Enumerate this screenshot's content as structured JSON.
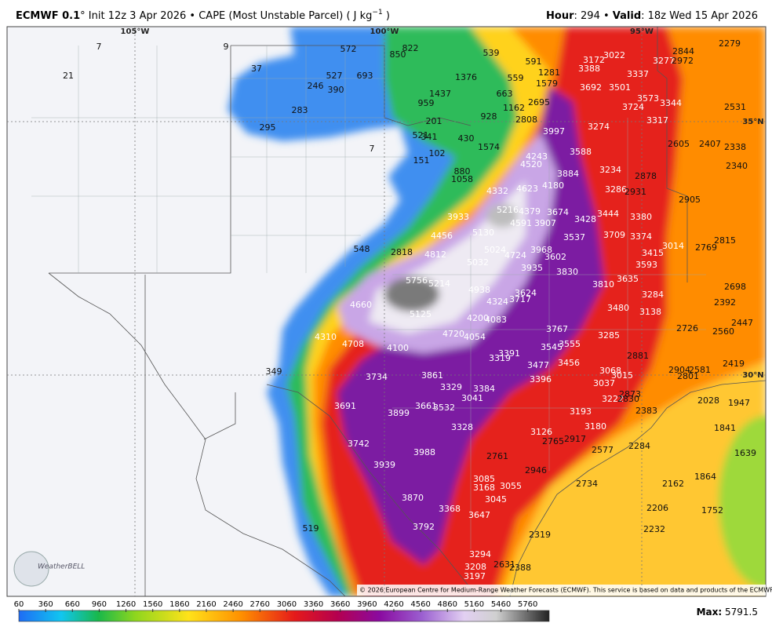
{
  "header": {
    "model": "ECMWF 0.1",
    "title": "° Init 12z 3 Apr 2026 • CAPE (Most Unstable Parcel) ( J kg",
    "title_exp": "−1",
    "title_end": " )",
    "hour_label": "Hour",
    "hour_text": ": 294 • ",
    "valid_label": "Valid",
    "valid_text": ": 18z Wed 15 Apr 2026"
  },
  "grid_labels": [
    "105°W",
    "100°W",
    "95°W",
    "35°N",
    "30°N"
  ],
  "map_labels": [
    7,
    9,
    21,
    37,
    572,
    850,
    822,
    539,
    591,
    1281,
    559,
    1579,
    527,
    693,
    246,
    390,
    1376,
    1437,
    663,
    959,
    283,
    1162,
    2695,
    928,
    295,
    201,
    2808,
    521,
    341,
    430,
    7,
    1574,
    102,
    151,
    4243,
    4520,
    880,
    1058,
    4332,
    4623,
    4180,
    3884,
    3933,
    5216,
    4379,
    4591,
    3907,
    3674,
    5130,
    4456,
    3537,
    3428,
    3444,
    548,
    2818,
    4812,
    5024,
    4724,
    3968,
    3602,
    5032,
    3935,
    3830,
    5756,
    5214,
    4938,
    3624,
    3717,
    4324,
    4660,
    5125,
    4200,
    4083,
    4310,
    4708,
    4100,
    4720,
    4054,
    3391,
    3319,
    3767,
    3555,
    3545,
    3477,
    3456,
    3396,
    349,
    3734,
    3861,
    3329,
    3384,
    3041,
    3691,
    3899,
    3661,
    3532,
    3328,
    3742,
    3988,
    3939,
    2761,
    3126,
    2765,
    2917,
    2577,
    2946,
    3085,
    3168,
    3055,
    3045,
    3870,
    519,
    3792,
    3368,
    3647,
    3294,
    3208,
    2631,
    2388,
    3197,
    2319,
    2734,
    2284,
    2162,
    2206,
    2232,
    1864,
    1752,
    1841,
    1639,
    1947,
    2028,
    3480,
    3138,
    3810,
    3635,
    3284,
    3285,
    2881,
    3068,
    3015,
    3037,
    2873,
    3222,
    2830,
    2383,
    3193,
    3180,
    2726,
    2904,
    2581,
    2801,
    2560,
    2447,
    2419,
    2698,
    2392,
    2815,
    2769,
    3014,
    3415,
    3593,
    3374,
    3380,
    3709,
    3286,
    2931,
    2878,
    3234,
    3588,
    3997,
    3274,
    3317,
    3344,
    3573,
    3724,
    3501,
    3692,
    3388,
    3172,
    3022,
    3337,
    3277,
    2972,
    2844,
    2279,
    2531,
    2605,
    2407,
    2338,
    2340,
    2905
  ],
  "logo": "WeatherBELL",
  "copyright": "© 2026 European Centre for Medium-Range Weather Forecasts (ECMWF). This service is based on data and products of the ECMWF.",
  "colorbar": {
    "ticks": [
      60,
      360,
      660,
      960,
      1260,
      1560,
      1860,
      2160,
      2460,
      2760,
      3060,
      3360,
      3660,
      3960,
      4260,
      4560,
      4860,
      5160,
      5460,
      5760
    ],
    "lim": [
      60,
      6000
    ],
    "max_label": "Max:",
    "max": 5791.5
  }
}
